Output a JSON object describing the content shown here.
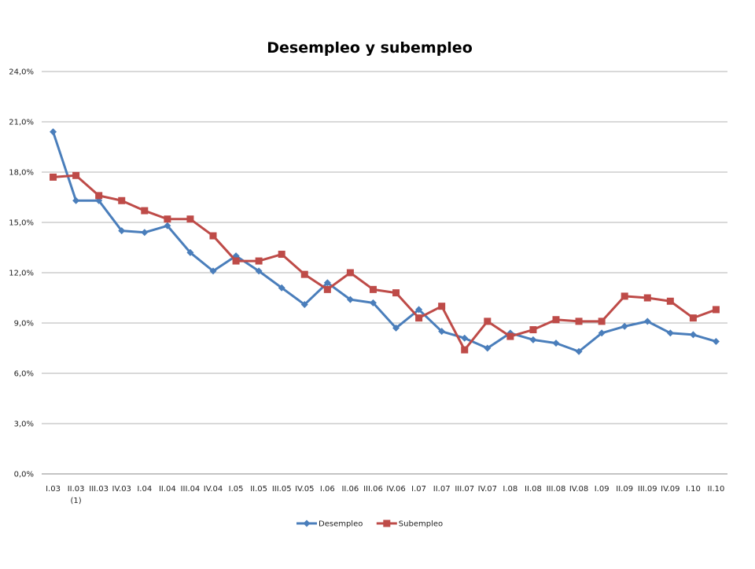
{
  "chart_data": {
    "type": "line",
    "title": "Desempleo y subempleo",
    "xlabel": "",
    "ylabel": "",
    "categories": [
      "I.03",
      "II.03",
      "III.03",
      "IV.03",
      "I.04",
      "II.04",
      "III.04",
      "IV.04",
      "I.05",
      "II.05",
      "III.05",
      "IV.05",
      "I.06",
      "II.06",
      "III.06",
      "IV.06",
      "I.07",
      "II.07",
      "III.07",
      "IV.07",
      "I.08",
      "II.08",
      "III.08",
      "IV.08",
      "I.09",
      "II.09",
      "III.09",
      "IV.09",
      "I.10",
      "II.10"
    ],
    "category_footnotes": {
      "1": "(1)"
    },
    "yticks": [
      "0,0%",
      "3,0%",
      "6,0%",
      "9,0%",
      "12,0%",
      "15,0%",
      "18,0%",
      "21,0%",
      "24,0%"
    ],
    "ylim": [
      0,
      24
    ],
    "grid": true,
    "legend_position": "bottom",
    "series": [
      {
        "name": "Desempleo",
        "color": "#4A7EBB",
        "marker": "diamond",
        "values": [
          20.4,
          16.3,
          16.3,
          14.5,
          14.4,
          14.8,
          13.2,
          12.1,
          13.0,
          12.1,
          11.1,
          10.1,
          11.4,
          10.4,
          10.2,
          8.7,
          9.8,
          8.5,
          8.1,
          7.5,
          8.4,
          8.0,
          7.8,
          7.3,
          8.4,
          8.8,
          9.1,
          8.4,
          8.3,
          7.9
        ]
      },
      {
        "name": "Subempleo",
        "color": "#BE4B48",
        "marker": "square",
        "values": [
          17.7,
          17.8,
          16.6,
          16.3,
          15.7,
          15.2,
          15.2,
          14.2,
          12.7,
          12.7,
          13.1,
          11.9,
          11.0,
          12.0,
          11.0,
          10.8,
          9.3,
          10.0,
          7.4,
          9.1,
          8.2,
          8.6,
          9.2,
          9.1,
          9.1,
          10.6,
          10.5,
          10.3,
          9.3,
          9.8
        ]
      }
    ]
  }
}
